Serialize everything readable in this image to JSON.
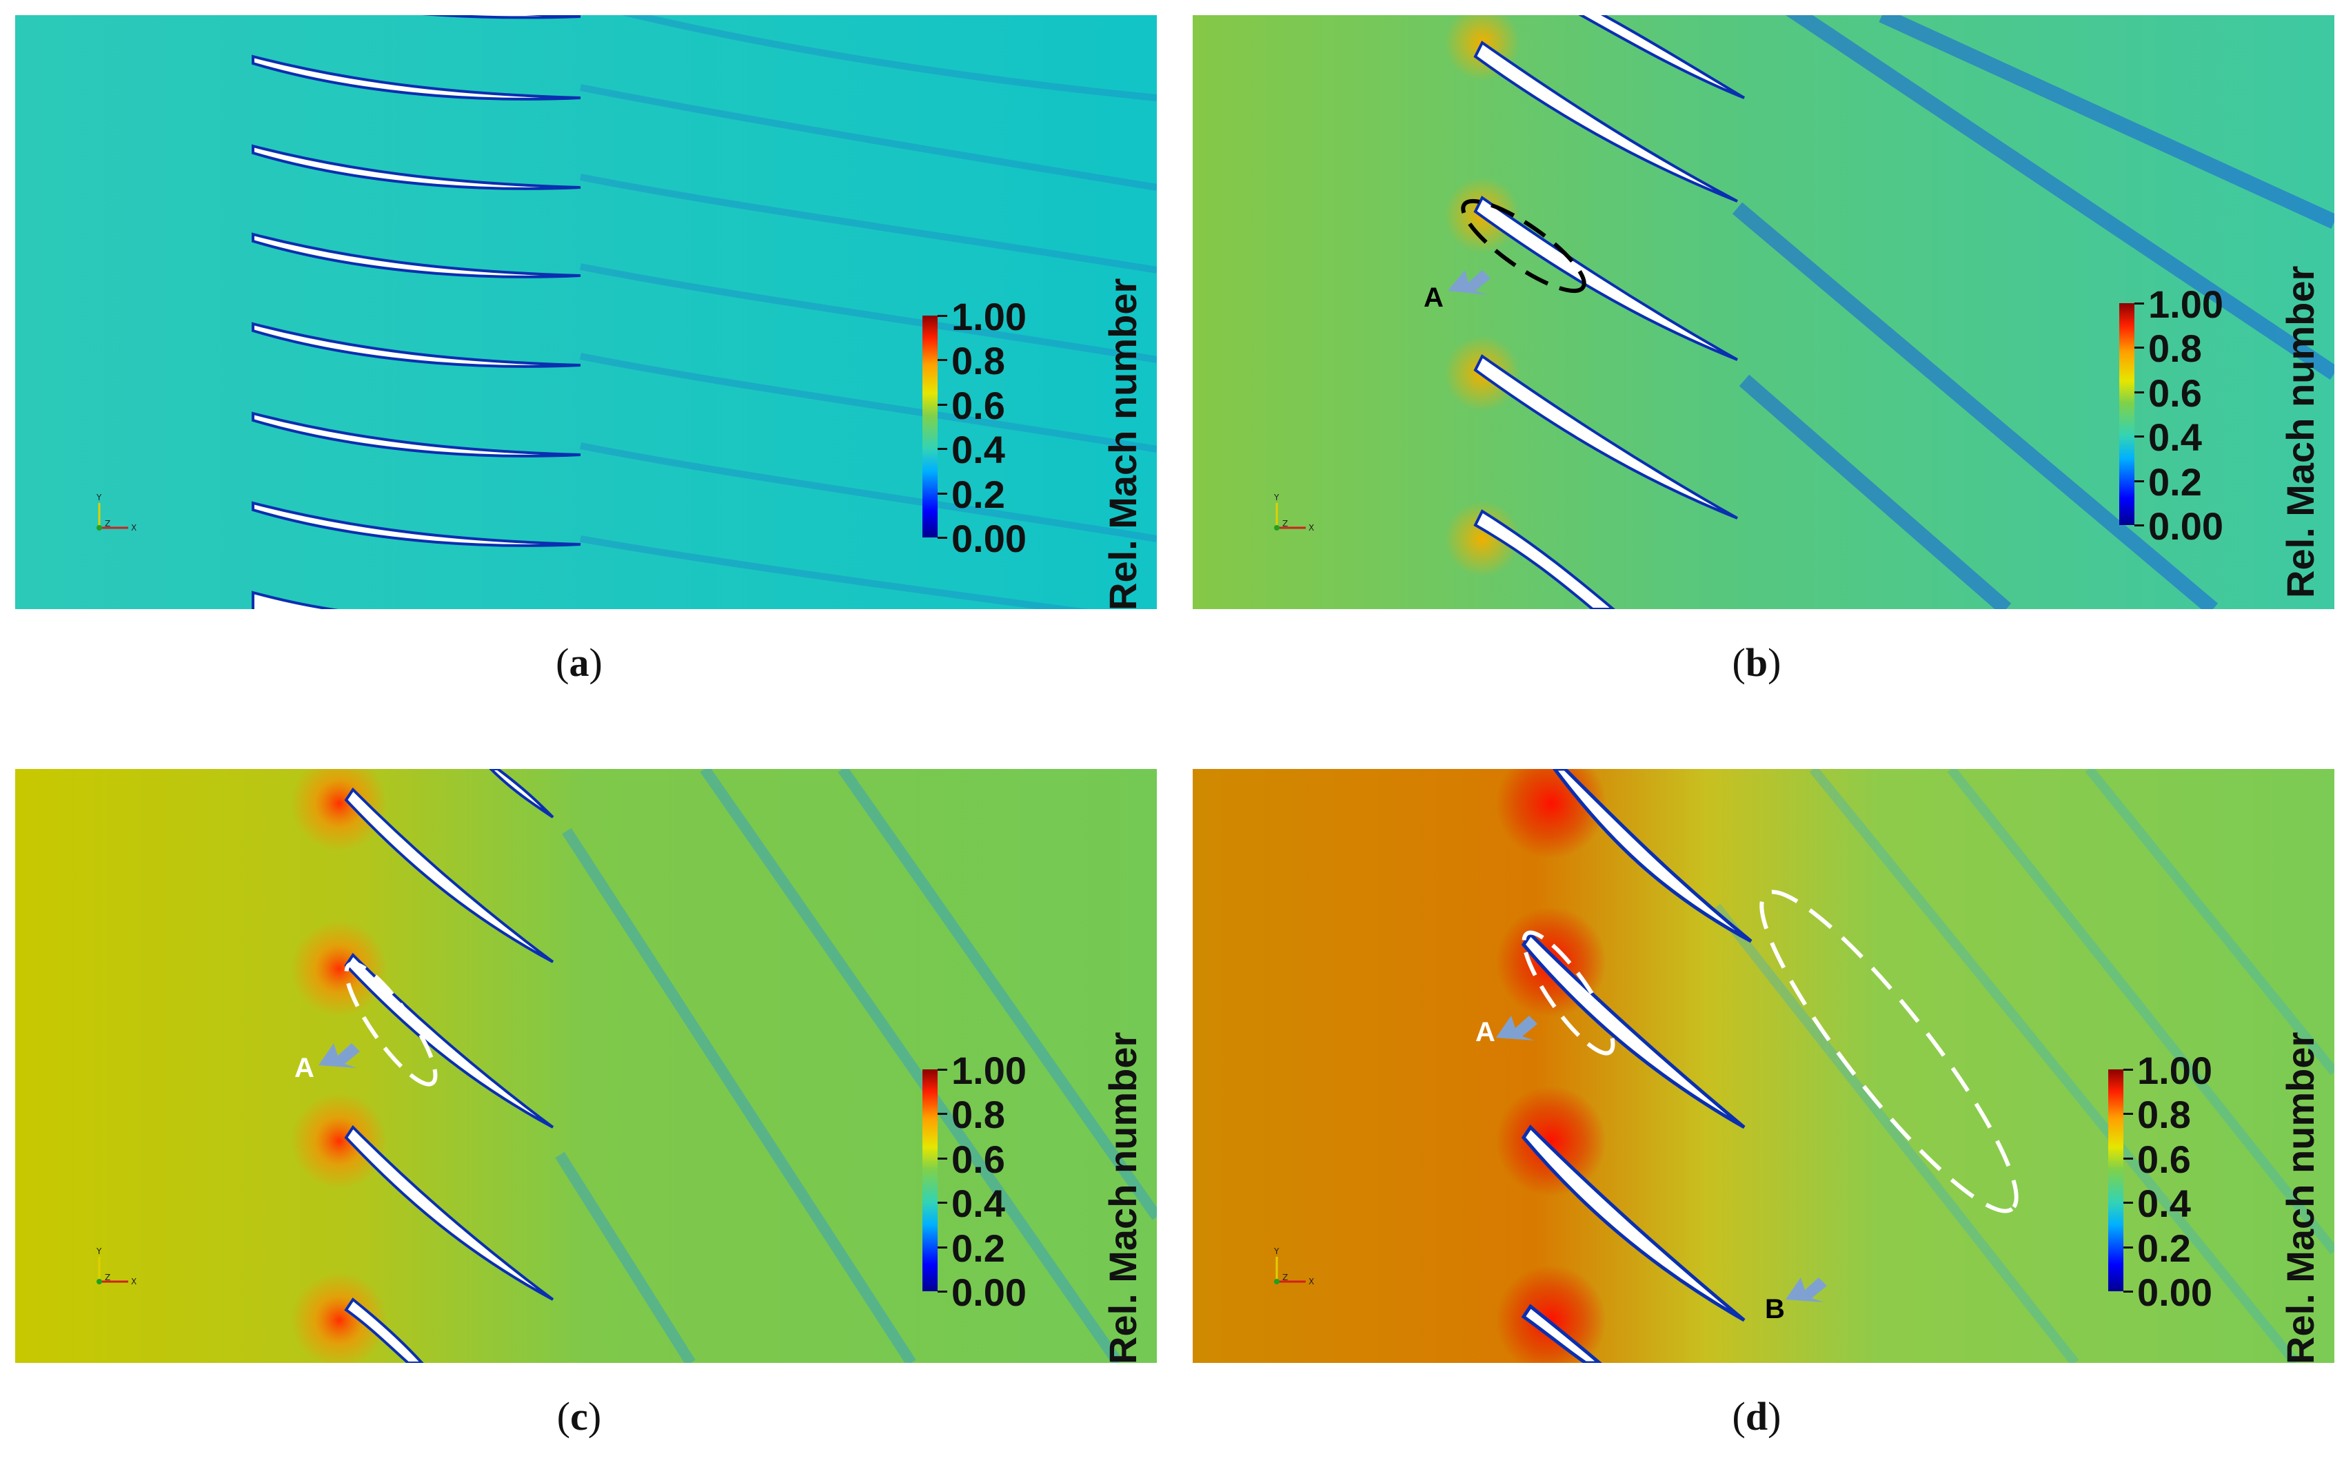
{
  "panels": [
    {
      "id": "a",
      "caption": "a",
      "field_color": "#1fc4c4",
      "has_colorbar": true
    },
    {
      "id": "b",
      "caption": "b",
      "field_color": "#46c98e",
      "has_colorbar": true
    },
    {
      "id": "c",
      "caption": "c",
      "field_color": "#7cc94c",
      "has_colorbar": true
    },
    {
      "id": "d",
      "caption": "d",
      "field_color": "#8ccb4c",
      "has_colorbar": true
    }
  ],
  "colorbar": {
    "title": "Rel. Mach number",
    "ticks": [
      "1.00",
      "0.8",
      "0.6",
      "0.4",
      "0.2",
      "0.00"
    ],
    "range": [
      0.0,
      1.0
    ]
  },
  "annotations": {
    "b_A": "A",
    "c_A": "A",
    "d_A": "A",
    "d_B": "B"
  },
  "axis_triad": {
    "y": "Y",
    "z": "Z",
    "x": "X"
  },
  "colors": {
    "arrow": "#7fa1d2",
    "blade": "#ffffff",
    "wake": "#1c4fd6"
  }
}
